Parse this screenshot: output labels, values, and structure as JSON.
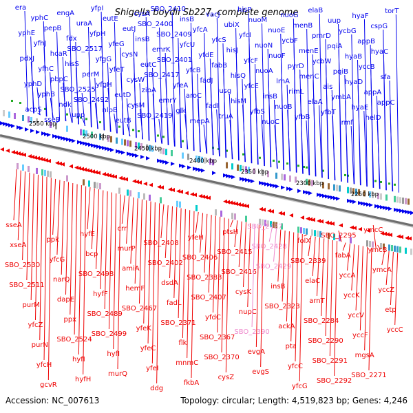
{
  "title": "Shigella boydii Sb227, complete genome",
  "footer": {
    "accession": "Accession: NC_007613",
    "summary": "Topology: circular; Length: 4,519,823 bp; Genes: 4,246"
  },
  "colors": {
    "forward": "#0000ee",
    "reverse": "#ee0000",
    "pseudo": "#ee88cc",
    "backbone": "#7a7a7a",
    "rna": "#22aa22"
  },
  "scale_ticks": [
    "2550 kbp",
    "2500 kbp",
    "2450 kbp",
    "2400 kbp",
    "2350 kbp",
    "2300 kbp",
    "2250 kbp"
  ],
  "forward_genes": [
    "era",
    "yphE",
    "pdxJ",
    "yphD",
    "acpS",
    "yphC",
    "yfhJ",
    "yfhC",
    "yphB",
    "sseB",
    "pepB",
    "hcaR",
    "pbpC",
    "ndk",
    "engA",
    "fdx",
    "hisS",
    "SBO_2525",
    "upp",
    "uraA",
    "SBO_2517",
    "perM",
    "SBO_2492",
    "yfpI",
    "yfpH",
    "yfgG",
    "yfgH",
    "nlpB",
    "eutE",
    "yfeG",
    "yfeT",
    "eutD",
    "eutB",
    "eutJ",
    "cysN",
    "cysW",
    "cysM",
    "cysA",
    "insB",
    "eutC",
    "zipA",
    "SBO_2419",
    "SBO_2400",
    "emrK",
    "SBO_2417",
    "emrY",
    "SBO_2410",
    "SBO_2409",
    "SBO_2401",
    "yfeA",
    "glk",
    "insB",
    "yfcU",
    "yfcB",
    "aroC",
    "mepA",
    "yfcA",
    "yfdE",
    "fadJ",
    "fadI",
    "vacJ",
    "yfcS",
    "fabB",
    "usg",
    "truA",
    "ubiX",
    "hisJ",
    "hisQ",
    "hisM",
    "hisP",
    "yfcI",
    "yfcF",
    "yfcE",
    "yfbS",
    "nuoM",
    "nuoN",
    "nuoA",
    "insB",
    "nuoC",
    "nuoE",
    "nuoF",
    "lrhA",
    "nuoB",
    "nuoG",
    "ycbF",
    "pyrD",
    "rimL",
    "yfbB",
    "menB",
    "menE",
    "menC",
    "elaA",
    "elaB",
    "pmrD",
    "ycbW",
    "ais",
    "yfbT",
    "uup",
    "pqiA",
    "pqiB",
    "ymbA",
    "rmf",
    "ycbG",
    "hyaB",
    "hyaD",
    "hyaE",
    "hyaF",
    "appB",
    "yccB",
    "appA",
    "helD",
    "cspG",
    "hyaC",
    "sfa",
    "appC",
    "torT"
  ],
  "reverse_genes": [
    "sseA",
    "xseA",
    "SBO_2530",
    "SBO_2511",
    "purM",
    "yfcZ",
    "purN",
    "yfcH",
    "gcvR",
    "ppk",
    "yfcG",
    "narQ",
    "dapE",
    "ppx",
    "SBO_2524",
    "hyfI",
    "hyfH",
    "hyfE",
    "bcp",
    "SBO_2498",
    "hyfF",
    "SBO_2489",
    "SBO_2499",
    "hyfI",
    "murQ",
    "crr",
    "murP",
    "amiA",
    "hemF",
    "SBO_2467",
    "yfeK",
    "yfeC",
    "yfeI",
    "ddg",
    "SBO_2408",
    "SBO_2402",
    "dsdA",
    "fadL",
    "SBO_2371",
    "flk",
    "mnmC",
    "fkbA",
    "yfeH",
    "SBO_2406",
    "SBO_2383",
    "SBO_2407",
    "yfdC",
    "SBO_2367",
    "SBO_2370",
    "cysZ",
    "ptsH",
    "SBO_2415",
    "SBO_2416",
    "cysK",
    "nupC",
    "SBO_2390",
    "evgA",
    "evgS",
    "SBO_2427",
    "SBO_2428",
    "SBO_2429",
    "insB",
    "SBO_2323",
    "ackA",
    "pta",
    "yfcC",
    "yfcG",
    "folX",
    "SBO_2339",
    "elaC",
    "arnT",
    "SBO_2284",
    "SBO_2290",
    "SBO_2291",
    "SBO_2292",
    "SBO_2295",
    "fabA",
    "yccA",
    "yccK",
    "yccV",
    "yccF",
    "mgsA",
    "SBO_2271",
    "ymcC",
    "ymcB",
    "ymcA",
    "yccZ",
    "etp",
    "yccC"
  ]
}
